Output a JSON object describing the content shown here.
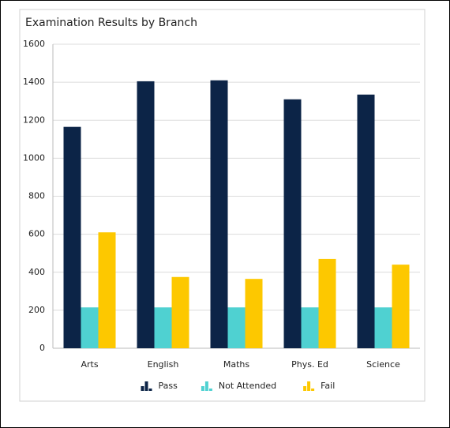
{
  "chart_data": {
    "type": "bar",
    "title": "Examination Results by Branch",
    "categories": [
      "Arts",
      "English",
      "Maths",
      "Phys. Ed",
      "Science"
    ],
    "series": [
      {
        "name": "Pass",
        "color": "#0c2447",
        "values": [
          1165,
          1405,
          1410,
          1310,
          1335
        ]
      },
      {
        "name": "Not Attended",
        "color": "#4fd1d1",
        "values": [
          215,
          215,
          215,
          215,
          215
        ]
      },
      {
        "name": "Fail",
        "color": "#fdc800",
        "values": [
          610,
          375,
          365,
          470,
          440
        ]
      }
    ],
    "ylim": [
      0,
      1600
    ],
    "yticks": [
      0,
      200,
      400,
      600,
      800,
      1000,
      1200,
      1400,
      1600
    ],
    "grid": true,
    "legend": "bottom"
  }
}
